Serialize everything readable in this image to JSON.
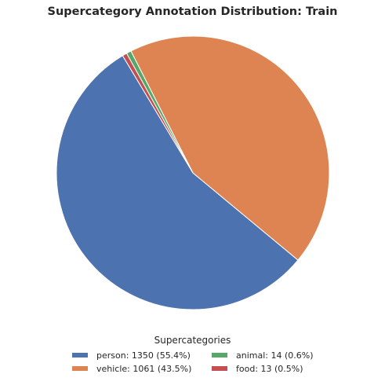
{
  "chart_data": {
    "type": "pie",
    "title": "Supercategory Annotation Distribution: Train",
    "legend_title": "Supercategories",
    "legend_position": "bottom",
    "categories": [
      "person",
      "vehicle",
      "animal",
      "food"
    ],
    "values": [
      1350,
      1061,
      14,
      13
    ],
    "percentages": [
      55.4,
      43.5,
      0.6,
      0.5
    ],
    "legend_labels": [
      "person: 1350 (55.4%)",
      "vehicle: 1061 (43.5%)",
      "animal: 14 (0.6%)",
      "food: 13 (0.5%)"
    ],
    "colors": [
      "#4c72b0",
      "#dd8452",
      "#55a868",
      "#c44e52"
    ]
  }
}
